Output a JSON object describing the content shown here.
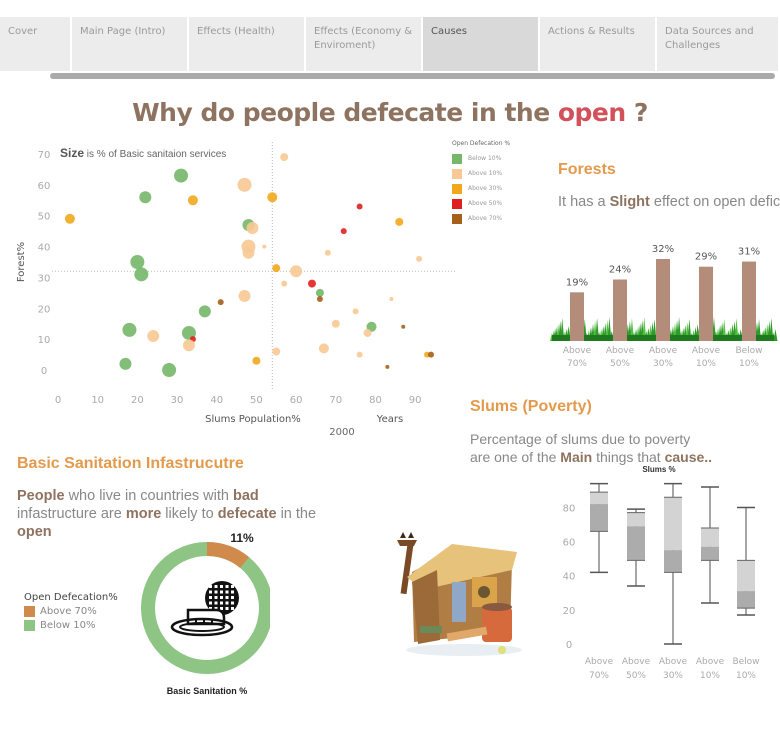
{
  "tabs": [
    {
      "label": "Cover",
      "width": 72,
      "active": false
    },
    {
      "label": "Main Page (Intro)",
      "width": 117,
      "active": false
    },
    {
      "label": "Effects (Health)",
      "width": 117,
      "active": false
    },
    {
      "label": "Effects (Economy & Enviroment)",
      "width": 117,
      "active": false
    },
    {
      "label": "Causes",
      "width": 117,
      "active": true
    },
    {
      "label": "Actions & Results",
      "width": 117,
      "active": false
    },
    {
      "label": "Data Sources and Challenges",
      "width": 123,
      "active": false
    }
  ],
  "title": {
    "prefix": "Why do people defecate in the ",
    "highlight": "open",
    "suffix": " ?"
  },
  "colors": {
    "below10": "#76b769",
    "above10": "#f8c995",
    "above30": "#f2a81d",
    "above50": "#e02020",
    "above70": "#a5611c",
    "bar": "#b48d7a",
    "title": "#8e7360",
    "accent": "#e39a4c",
    "donut_green": "#8fc584",
    "donut_orange": "#d08b4c"
  },
  "scatter": {
    "note_bold": "Size",
    "note_rest": " is  % of Basic sanitaion services",
    "xlabel": "Slums Population%",
    "ylabel": "Forest%",
    "years_label": "Years",
    "year_value": "2000",
    "legend_title": "Open Defecation %",
    "legend": [
      {
        "label": "Below 10%",
        "key": "below10"
      },
      {
        "label": "Above 10%",
        "key": "above10"
      },
      {
        "label": "Above 30%",
        "key": "above30"
      },
      {
        "label": "Above 50%",
        "key": "above50"
      },
      {
        "label": "Above 70%",
        "key": "above70"
      }
    ]
  },
  "forests": {
    "title": "Forests",
    "text_prefix": "It has a ",
    "text_bold": "Slight",
    "text_suffix": " effect on open defic"
  },
  "slums": {
    "title": "Slums (Poverty)",
    "line1": "Percentage of slums due to poverty",
    "line2_prefix": "are one of the ",
    "line2_bold1": "Main",
    "line2_mid": " things that ",
    "line2_bold2": "cause..",
    "chart_title": "Slums %"
  },
  "sanitation": {
    "title": "Basic Sanitation Infastrucutre",
    "p_bold1": "People",
    "p1": " who live in countries with ",
    "p_bold2": "bad",
    "p2": " infastructure are ",
    "p_bold3": "more",
    "p3": " likely to ",
    "p_bold4": "defecate",
    "p4": " in the ",
    "p_bold5": "open",
    "donut_label": "11%",
    "donut_caption": "Basic Sanitation %",
    "legend_title": "Open Defecation%",
    "legend": [
      {
        "label": "Above 70%",
        "color": "#d08b4c"
      },
      {
        "label": "Below 10%",
        "color": "#8fc584"
      }
    ]
  },
  "chart_data": [
    {
      "type": "scatter",
      "title": "Size is % of Basic sanitaion services",
      "xlabel": "Slums Population%",
      "ylabel": "Forest%",
      "xlim": [
        0,
        100
      ],
      "ylim": [
        -5,
        72
      ],
      "x_ticks": [
        0,
        10,
        20,
        30,
        40,
        50,
        60,
        70,
        80,
        90
      ],
      "y_ticks": [
        0,
        10,
        20,
        30,
        40,
        50,
        60,
        70
      ],
      "reference_lines": {
        "x": 54,
        "y": 32
      },
      "legend_title": "Open Defecation %",
      "filter": "Years 2000",
      "points": [
        {
          "x": 3,
          "y": 49,
          "cat": "above30",
          "r": 5
        },
        {
          "x": 20,
          "y": 35,
          "cat": "below10",
          "r": 7
        },
        {
          "x": 21,
          "y": 31,
          "cat": "below10",
          "r": 7
        },
        {
          "x": 22,
          "y": 56,
          "cat": "below10",
          "r": 6
        },
        {
          "x": 31,
          "y": 63,
          "cat": "below10",
          "r": 7
        },
        {
          "x": 34,
          "y": 55,
          "cat": "above30",
          "r": 5
        },
        {
          "x": 47,
          "y": 60,
          "cat": "above10",
          "r": 7
        },
        {
          "x": 54,
          "y": 56,
          "cat": "above30",
          "r": 5
        },
        {
          "x": 57,
          "y": 69,
          "cat": "above10",
          "r": 4
        },
        {
          "x": 48,
          "y": 47,
          "cat": "below10",
          "r": 6
        },
        {
          "x": 49,
          "y": 46,
          "cat": "above10",
          "r": 6
        },
        {
          "x": 48,
          "y": 40,
          "cat": "above10",
          "r": 7
        },
        {
          "x": 48,
          "y": 38,
          "cat": "above10",
          "r": 6
        },
        {
          "x": 52,
          "y": 40,
          "cat": "above10",
          "r": 2
        },
        {
          "x": 55,
          "y": 33,
          "cat": "above30",
          "r": 4
        },
        {
          "x": 60,
          "y": 32,
          "cat": "above10",
          "r": 6
        },
        {
          "x": 57,
          "y": 28,
          "cat": "above10",
          "r": 3
        },
        {
          "x": 64,
          "y": 28,
          "cat": "above50",
          "r": 4
        },
        {
          "x": 66,
          "y": 25,
          "cat": "below10",
          "r": 4
        },
        {
          "x": 66,
          "y": 23,
          "cat": "above70",
          "r": 3
        },
        {
          "x": 76,
          "y": 53,
          "cat": "above50",
          "r": 3
        },
        {
          "x": 72,
          "y": 45,
          "cat": "above50",
          "r": 3
        },
        {
          "x": 86,
          "y": 48,
          "cat": "above30",
          "r": 4
        },
        {
          "x": 68,
          "y": 38,
          "cat": "above10",
          "r": 3
        },
        {
          "x": 91,
          "y": 36,
          "cat": "above10",
          "r": 3
        },
        {
          "x": 84,
          "y": 23,
          "cat": "above10",
          "r": 2
        },
        {
          "x": 75,
          "y": 19,
          "cat": "above10",
          "r": 3
        },
        {
          "x": 70,
          "y": 15,
          "cat": "above10",
          "r": 4
        },
        {
          "x": 79,
          "y": 14,
          "cat": "below10",
          "r": 5
        },
        {
          "x": 78,
          "y": 12,
          "cat": "above10",
          "r": 4
        },
        {
          "x": 87,
          "y": 14,
          "cat": "above70",
          "r": 2
        },
        {
          "x": 67,
          "y": 7,
          "cat": "above10",
          "r": 5
        },
        {
          "x": 55,
          "y": 6,
          "cat": "above10",
          "r": 4
        },
        {
          "x": 76,
          "y": 5,
          "cat": "above10",
          "r": 3
        },
        {
          "x": 93,
          "y": 5,
          "cat": "above30",
          "r": 3
        },
        {
          "x": 94,
          "y": 5,
          "cat": "above70",
          "r": 3
        },
        {
          "x": 83,
          "y": 1,
          "cat": "above70",
          "r": 2
        },
        {
          "x": 50,
          "y": 3,
          "cat": "above30",
          "r": 4
        },
        {
          "x": 41,
          "y": 22,
          "cat": "above70",
          "r": 3
        },
        {
          "x": 47,
          "y": 24,
          "cat": "above10",
          "r": 6
        },
        {
          "x": 37,
          "y": 19,
          "cat": "below10",
          "r": 6
        },
        {
          "x": 18,
          "y": 13,
          "cat": "below10",
          "r": 7
        },
        {
          "x": 24,
          "y": 11,
          "cat": "above10",
          "r": 6
        },
        {
          "x": 33,
          "y": 12,
          "cat": "below10",
          "r": 7
        },
        {
          "x": 34,
          "y": 10,
          "cat": "above50",
          "r": 3
        },
        {
          "x": 33,
          "y": 8,
          "cat": "above10",
          "r": 6
        },
        {
          "x": 17,
          "y": 2,
          "cat": "below10",
          "r": 6
        },
        {
          "x": 28,
          "y": 0,
          "cat": "below10",
          "r": 7
        }
      ]
    },
    {
      "type": "bar",
      "title": "Forests",
      "categories": [
        "Above 70%",
        "Above 50%",
        "Above 30%",
        "Above 10%",
        "Below 10%"
      ],
      "values": [
        19,
        24,
        32,
        29,
        31
      ],
      "value_labels": [
        "19%",
        "24%",
        "32%",
        "29%",
        "31%"
      ],
      "ylim": [
        0,
        35
      ]
    },
    {
      "type": "box",
      "title": "Slums %",
      "categories": [
        "Above 70%",
        "Above 50%",
        "Above 30%",
        "Above 10%",
        "Below 10%"
      ],
      "y_ticks": [
        0,
        20,
        40,
        60,
        80
      ],
      "ylim": [
        0,
        95
      ],
      "boxes": [
        {
          "min": 42,
          "q1": 66,
          "median": 82,
          "q3": 89,
          "max": 94
        },
        {
          "min": 34,
          "q1": 49,
          "median": 69,
          "q3": 77,
          "max": 79
        },
        {
          "min": 0,
          "q1": 42,
          "median": 55,
          "q3": 86,
          "max": 94
        },
        {
          "min": 24,
          "q1": 49,
          "median": 57,
          "q3": 68,
          "max": 92
        },
        {
          "min": 17,
          "q1": 21,
          "median": 31,
          "q3": 49,
          "max": 80
        }
      ]
    },
    {
      "type": "pie",
      "title": "Basic Sanitation %",
      "labels": [
        "Above 70%",
        "Below 10%"
      ],
      "values": [
        11,
        89
      ],
      "donut": true
    }
  ]
}
